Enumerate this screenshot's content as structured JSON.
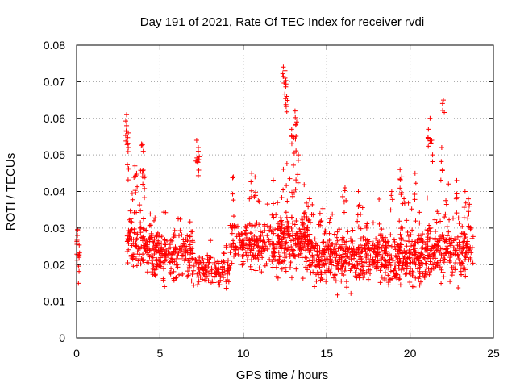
{
  "chart_data": {
    "type": "scatter",
    "title": "Day 191 of 2021, Rate Of TEC Index for receiver rvdi",
    "xlabel": "GPS time / hours",
    "ylabel": "ROTI / TECUs",
    "xlim": [
      0,
      25
    ],
    "ylim": [
      0,
      0.08
    ],
    "xticks": [
      0,
      5,
      10,
      15,
      20,
      25
    ],
    "yticks": [
      0,
      0.01,
      0.02,
      0.03,
      0.04,
      0.05,
      0.06,
      0.07,
      0.08
    ],
    "xtick_labels": [
      "0",
      "5",
      "10",
      "15",
      "20",
      "25"
    ],
    "ytick_labels": [
      "0",
      "0.01",
      "0.02",
      "0.03",
      "0.04",
      "0.05",
      "0.06",
      "0.07",
      "0.08"
    ],
    "grid": true,
    "marker": "+",
    "marker_color": "#ff0000",
    "series": [
      {
        "name": "rvdi",
        "segments": [
          {
            "start": 0.0,
            "end": 0.2,
            "center": 0.022,
            "spread": 0.006,
            "count": 14
          },
          {
            "start": 3.0,
            "end": 4.5,
            "center": 0.026,
            "spread": 0.009,
            "count": 120
          },
          {
            "start": 4.5,
            "end": 7.0,
            "center": 0.023,
            "spread": 0.007,
            "count": 210
          },
          {
            "start": 7.0,
            "end": 9.2,
            "center": 0.019,
            "spread": 0.005,
            "count": 120
          },
          {
            "start": 9.2,
            "end": 12.0,
            "center": 0.025,
            "spread": 0.007,
            "count": 200
          },
          {
            "start": 12.0,
            "end": 14.0,
            "center": 0.027,
            "spread": 0.009,
            "count": 220
          },
          {
            "start": 14.0,
            "end": 18.0,
            "center": 0.022,
            "spread": 0.007,
            "count": 360
          },
          {
            "start": 18.0,
            "end": 21.0,
            "center": 0.022,
            "spread": 0.008,
            "count": 280
          },
          {
            "start": 21.0,
            "end": 23.8,
            "center": 0.024,
            "spread": 0.008,
            "count": 220
          }
        ],
        "peaks": [
          {
            "x": 3.0,
            "y": 0.061
          },
          {
            "x": 3.0,
            "y": 0.058
          },
          {
            "x": 3.1,
            "y": 0.056
          },
          {
            "x": 3.1,
            "y": 0.052
          },
          {
            "x": 3.5,
            "y": 0.047
          },
          {
            "x": 3.6,
            "y": 0.045
          },
          {
            "x": 3.9,
            "y": 0.053
          },
          {
            "x": 4.0,
            "y": 0.051
          },
          {
            "x": 4.1,
            "y": 0.044
          },
          {
            "x": 7.2,
            "y": 0.054
          },
          {
            "x": 7.3,
            "y": 0.052
          },
          {
            "x": 7.3,
            "y": 0.051
          },
          {
            "x": 9.4,
            "y": 0.044
          },
          {
            "x": 10.5,
            "y": 0.045
          },
          {
            "x": 10.7,
            "y": 0.044
          },
          {
            "x": 12.4,
            "y": 0.074
          },
          {
            "x": 12.5,
            "y": 0.073
          },
          {
            "x": 12.5,
            "y": 0.071
          },
          {
            "x": 12.6,
            "y": 0.066
          },
          {
            "x": 12.9,
            "y": 0.057
          },
          {
            "x": 13.0,
            "y": 0.055
          },
          {
            "x": 13.1,
            "y": 0.062
          },
          {
            "x": 13.2,
            "y": 0.059
          },
          {
            "x": 13.3,
            "y": 0.05
          },
          {
            "x": 19.4,
            "y": 0.046
          },
          {
            "x": 19.5,
            "y": 0.044
          },
          {
            "x": 20.3,
            "y": 0.045
          },
          {
            "x": 21.2,
            "y": 0.06
          },
          {
            "x": 21.1,
            "y": 0.057
          },
          {
            "x": 21.3,
            "y": 0.054
          },
          {
            "x": 22.0,
            "y": 0.065
          },
          {
            "x": 21.9,
            "y": 0.052
          },
          {
            "x": 22.8,
            "y": 0.043
          },
          {
            "x": 23.3,
            "y": 0.04
          },
          {
            "x": 23.5,
            "y": 0.038
          },
          {
            "x": 0.05,
            "y": 0.028
          },
          {
            "x": 16.1,
            "y": 0.041
          },
          {
            "x": 16.9,
            "y": 0.04
          },
          {
            "x": 18.9,
            "y": 0.04
          }
        ]
      }
    ]
  }
}
